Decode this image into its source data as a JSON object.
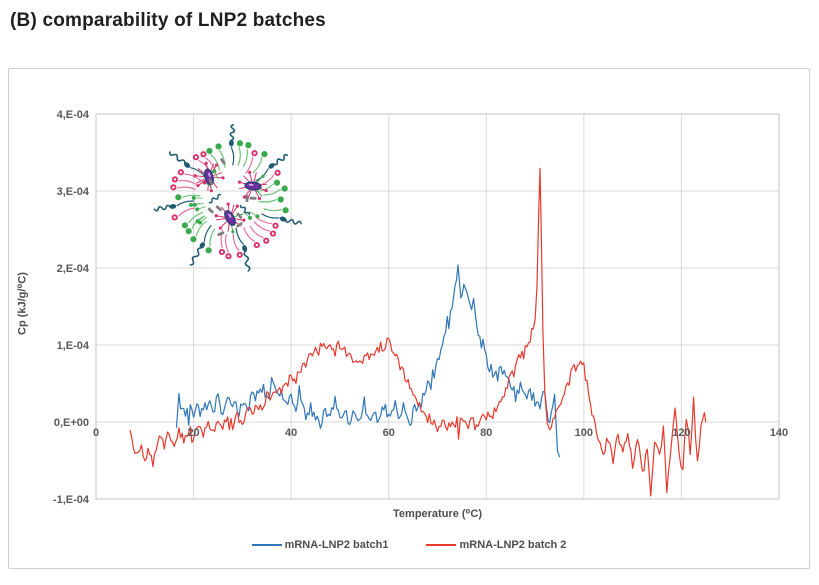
{
  "page": {
    "heading": "(B) comparability of LNP2 batches"
  },
  "chart_data": {
    "type": "line",
    "title": "",
    "xlabel": "Temperature (⁰C)",
    "ylabel": "Cp (kJ/g/⁰C)",
    "xlim": [
      0,
      140
    ],
    "ylim": [
      -0.0001,
      0.0004
    ],
    "x_ticks": [
      0,
      20,
      40,
      60,
      80,
      100,
      120,
      140
    ],
    "y_ticks": [
      {
        "value": 0.0004,
        "label": "4,E-04"
      },
      {
        "value": 0.0003,
        "label": "3,E-04"
      },
      {
        "value": 0.0002,
        "label": "2,E-04"
      },
      {
        "value": 0.0001,
        "label": "1,E-04"
      },
      {
        "value": 0.0,
        "label": "0,E+00"
      },
      {
        "value": -0.0001,
        "label": "-1,E-04"
      }
    ],
    "grid": true,
    "legend_position": "bottom",
    "colors": {
      "gridline": "#d9d9d9",
      "plot_border": "#c3c3c3",
      "tick_text": "#595959"
    },
    "series": [
      {
        "name": "mRNA-LNP2 batch1",
        "color": "#2E75B6",
        "noise_band": 9.5e-06,
        "points": [
          [
            16.5,
            -5e-06
          ],
          [
            17,
            3e-05
          ],
          [
            18,
            1e-05
          ],
          [
            19,
            2.5e-05
          ],
          [
            20,
            5e-06
          ],
          [
            21,
            2e-05
          ],
          [
            22,
            1e-05
          ],
          [
            23,
            3e-05
          ],
          [
            24,
            1.5e-05
          ],
          [
            25,
            3e-05
          ],
          [
            26,
            1e-05
          ],
          [
            27,
            2.5e-05
          ],
          [
            28,
            2e-05
          ],
          [
            29,
            1e-05
          ],
          [
            30,
            3e-05
          ],
          [
            31,
            1.5e-05
          ],
          [
            32,
            3.5e-05
          ],
          [
            33,
            2e-05
          ],
          [
            34,
            4.5e-05
          ],
          [
            35,
            3e-05
          ],
          [
            36,
            5e-05
          ],
          [
            37,
            3.5e-05
          ],
          [
            38,
            4.5e-05
          ],
          [
            39,
            2.5e-05
          ],
          [
            40,
            3.5e-05
          ],
          [
            41,
            1e-05
          ],
          [
            42,
            3e-05
          ],
          [
            43,
            0.0
          ],
          [
            44,
            2e-05
          ],
          [
            45,
            1e-05
          ],
          [
            46,
            -1e-05
          ],
          [
            47,
            1.5e-05
          ],
          [
            48,
            5e-06
          ],
          [
            49,
            2.5e-05
          ],
          [
            50,
            0.0
          ],
          [
            51,
            2e-05
          ],
          [
            52,
            -1e-05
          ],
          [
            53,
            1.5e-05
          ],
          [
            54,
            5e-06
          ],
          [
            55,
            2.5e-05
          ],
          [
            56,
            0.0
          ],
          [
            57,
            1.5e-05
          ],
          [
            58,
            -5e-06
          ],
          [
            59,
            2e-05
          ],
          [
            60,
            1e-05
          ],
          [
            61,
            2.5e-05
          ],
          [
            62,
            5e-06
          ],
          [
            63,
            1.5e-05
          ],
          [
            64,
            -5e-06
          ],
          [
            65,
            1e-05
          ],
          [
            66,
            2e-05
          ],
          [
            67,
            3e-05
          ],
          [
            68,
            4.5e-05
          ],
          [
            69,
            6e-05
          ],
          [
            70,
            7.5e-05
          ],
          [
            71,
            9.5e-05
          ],
          [
            72,
            0.00012
          ],
          [
            73,
            0.00015
          ],
          [
            73.6,
            0.00018
          ],
          [
            74.2,
            0.000195
          ],
          [
            74.8,
            0.000165
          ],
          [
            75.4,
            0.000185
          ],
          [
            76,
            0.00017
          ],
          [
            76.6,
            0.00015
          ],
          [
            77.4,
            0.00016
          ],
          [
            78,
            0.00013
          ],
          [
            79,
            0.000105
          ],
          [
            80,
            8e-05
          ],
          [
            81,
            7e-05
          ],
          [
            82,
            6e-05
          ],
          [
            83,
            6.5e-05
          ],
          [
            84,
            5.5e-05
          ],
          [
            85,
            5e-05
          ],
          [
            86,
            3.5e-05
          ],
          [
            87,
            5e-05
          ],
          [
            88,
            3e-05
          ],
          [
            89,
            4e-05
          ],
          [
            90,
            2.5e-05
          ],
          [
            91,
            1.5e-05
          ],
          [
            92,
            4e-05
          ],
          [
            93,
            -5e-06
          ],
          [
            94,
            3e-05
          ],
          [
            94.6,
            -3e-05
          ],
          [
            95,
            -4.5e-05
          ]
        ]
      },
      {
        "name": "mRNA-LNP2 batch 2",
        "color": "#E8392C",
        "noise_band": 7.5e-06,
        "points": [
          [
            7,
            -1.5e-05
          ],
          [
            8,
            -4.5e-05
          ],
          [
            9,
            -3e-05
          ],
          [
            10,
            -5e-05
          ],
          [
            11,
            -3.5e-05
          ],
          [
            12,
            -4.5e-05
          ],
          [
            13,
            -2.5e-05
          ],
          [
            14,
            -3e-05
          ],
          [
            15,
            -1.5e-05
          ],
          [
            16,
            -2.5e-05
          ],
          [
            17,
            -1e-05
          ],
          [
            18,
            -2e-05
          ],
          [
            19,
            -1e-05
          ],
          [
            20,
            -2e-05
          ],
          [
            21,
            -5e-06
          ],
          [
            22,
            -1.5e-05
          ],
          [
            23,
            -5e-06
          ],
          [
            24,
            -1.5e-05
          ],
          [
            25,
            0.0
          ],
          [
            26,
            -1e-05
          ],
          [
            27,
            5e-06
          ],
          [
            28,
            -5e-06
          ],
          [
            29,
            1e-05
          ],
          [
            30,
            0.0
          ],
          [
            31,
            1.5e-05
          ],
          [
            32,
            1e-05
          ],
          [
            33,
            2.5e-05
          ],
          [
            34,
            2e-05
          ],
          [
            35,
            3.5e-05
          ],
          [
            36,
            3e-05
          ],
          [
            37,
            4.5e-05
          ],
          [
            38,
            4e-05
          ],
          [
            39,
            5e-05
          ],
          [
            40,
            6e-05
          ],
          [
            41,
            5.5e-05
          ],
          [
            42,
            7e-05
          ],
          [
            43,
            7.5e-05
          ],
          [
            44,
            8.5e-05
          ],
          [
            45,
            9e-05
          ],
          [
            46,
            9.5e-05
          ],
          [
            47,
            0.0001
          ],
          [
            48,
            0.000105
          ],
          [
            49,
            9.5e-05
          ],
          [
            50,
            0.0001
          ],
          [
            51,
            9e-05
          ],
          [
            52,
            8.5e-05
          ],
          [
            53,
            8e-05
          ],
          [
            54,
            7.5e-05
          ],
          [
            55,
            8e-05
          ],
          [
            56,
            8.5e-05
          ],
          [
            57,
            9e-05
          ],
          [
            58,
            9.5e-05
          ],
          [
            59,
            0.0001
          ],
          [
            60,
            0.000105
          ],
          [
            61,
            9.5e-05
          ],
          [
            62,
            8e-05
          ],
          [
            63,
            6.5e-05
          ],
          [
            64,
            5e-05
          ],
          [
            65,
            3.5e-05
          ],
          [
            66,
            2.5e-05
          ],
          [
            67,
            1.5e-05
          ],
          [
            68,
            5e-06
          ],
          [
            69,
            0.0
          ],
          [
            70,
            -5e-06
          ],
          [
            71,
            5e-06
          ],
          [
            72,
            -1e-05
          ],
          [
            73,
            0.0
          ],
          [
            74,
            -1e-05
          ],
          [
            75,
            5e-06
          ],
          [
            76,
            -5e-06
          ],
          [
            77,
            5e-06
          ],
          [
            78,
            -1e-05
          ],
          [
            79,
            0.0
          ],
          [
            80,
            1e-05
          ],
          [
            81,
            5e-06
          ],
          [
            82,
            2e-05
          ],
          [
            83,
            3e-05
          ],
          [
            84,
            4.5e-05
          ],
          [
            85,
            6e-05
          ],
          [
            86,
            7e-05
          ],
          [
            87,
            8.5e-05
          ],
          [
            88,
            9.5e-05
          ],
          [
            89,
            0.00011
          ],
          [
            90,
            0.00013
          ],
          [
            90.4,
            0.00018
          ],
          [
            90.7,
            0.00026
          ],
          [
            91,
            0.000325
          ],
          [
            91.3,
            0.00024
          ],
          [
            91.6,
            0.00012
          ],
          [
            92,
            3.5e-05
          ],
          [
            92.5,
            0.0
          ],
          [
            93,
            -1e-05
          ],
          [
            94,
            5e-06
          ],
          [
            95,
            2e-05
          ],
          [
            96,
            3.5e-05
          ],
          [
            97,
            5.5e-05
          ],
          [
            98,
            7e-05
          ],
          [
            99,
            8e-05
          ],
          [
            100,
            7e-05
          ],
          [
            101,
            3.5e-05
          ],
          [
            102,
            5e-06
          ],
          [
            103,
            -2e-05
          ],
          [
            104,
            -4.5e-05
          ],
          [
            105,
            -2e-05
          ],
          [
            106,
            -5e-05
          ],
          [
            107,
            -1.5e-05
          ],
          [
            108,
            -4e-05
          ],
          [
            109,
            -1e-05
          ],
          [
            110,
            -5.5e-05
          ],
          [
            111,
            -2e-05
          ],
          [
            112,
            -7e-05
          ],
          [
            113,
            -3.5e-05
          ],
          [
            113.7,
            -9e-05
          ],
          [
            114.5,
            -2.5e-05
          ],
          [
            115.5,
            -4.5e-05
          ],
          [
            116.3,
            -1e-05
          ],
          [
            117,
            -8.5e-05
          ],
          [
            118,
            -2.5e-05
          ],
          [
            118.7,
            1.5e-05
          ],
          [
            119.5,
            -4e-05
          ],
          [
            120.3,
            -6.5e-05
          ],
          [
            121,
            1e-05
          ],
          [
            121.8,
            -3.5e-05
          ],
          [
            122.5,
            2.5e-05
          ],
          [
            123.3,
            -5.5e-05
          ],
          [
            124,
            -1e-05
          ],
          [
            124.7,
            1e-05
          ],
          [
            125,
            0.0
          ]
        ]
      }
    ],
    "annotations": [
      "lipid-nanoparticle schematic drawing inside plot, upper left"
    ]
  },
  "illustration": {
    "label": "lipid-nanoparticle-schematic",
    "colors": {
      "lipid_green": "#3BAA4E",
      "lipid_green_tail": "#6CC276",
      "lipid_pink": "#D6336C",
      "lipid_pink_tail": "#E87099",
      "peg_teal": "#1E5B72",
      "mrna_purple": "#6B2FA0",
      "mrna_outline": "#233E6B",
      "cholesterol_gray": "#7F7F7F"
    }
  }
}
